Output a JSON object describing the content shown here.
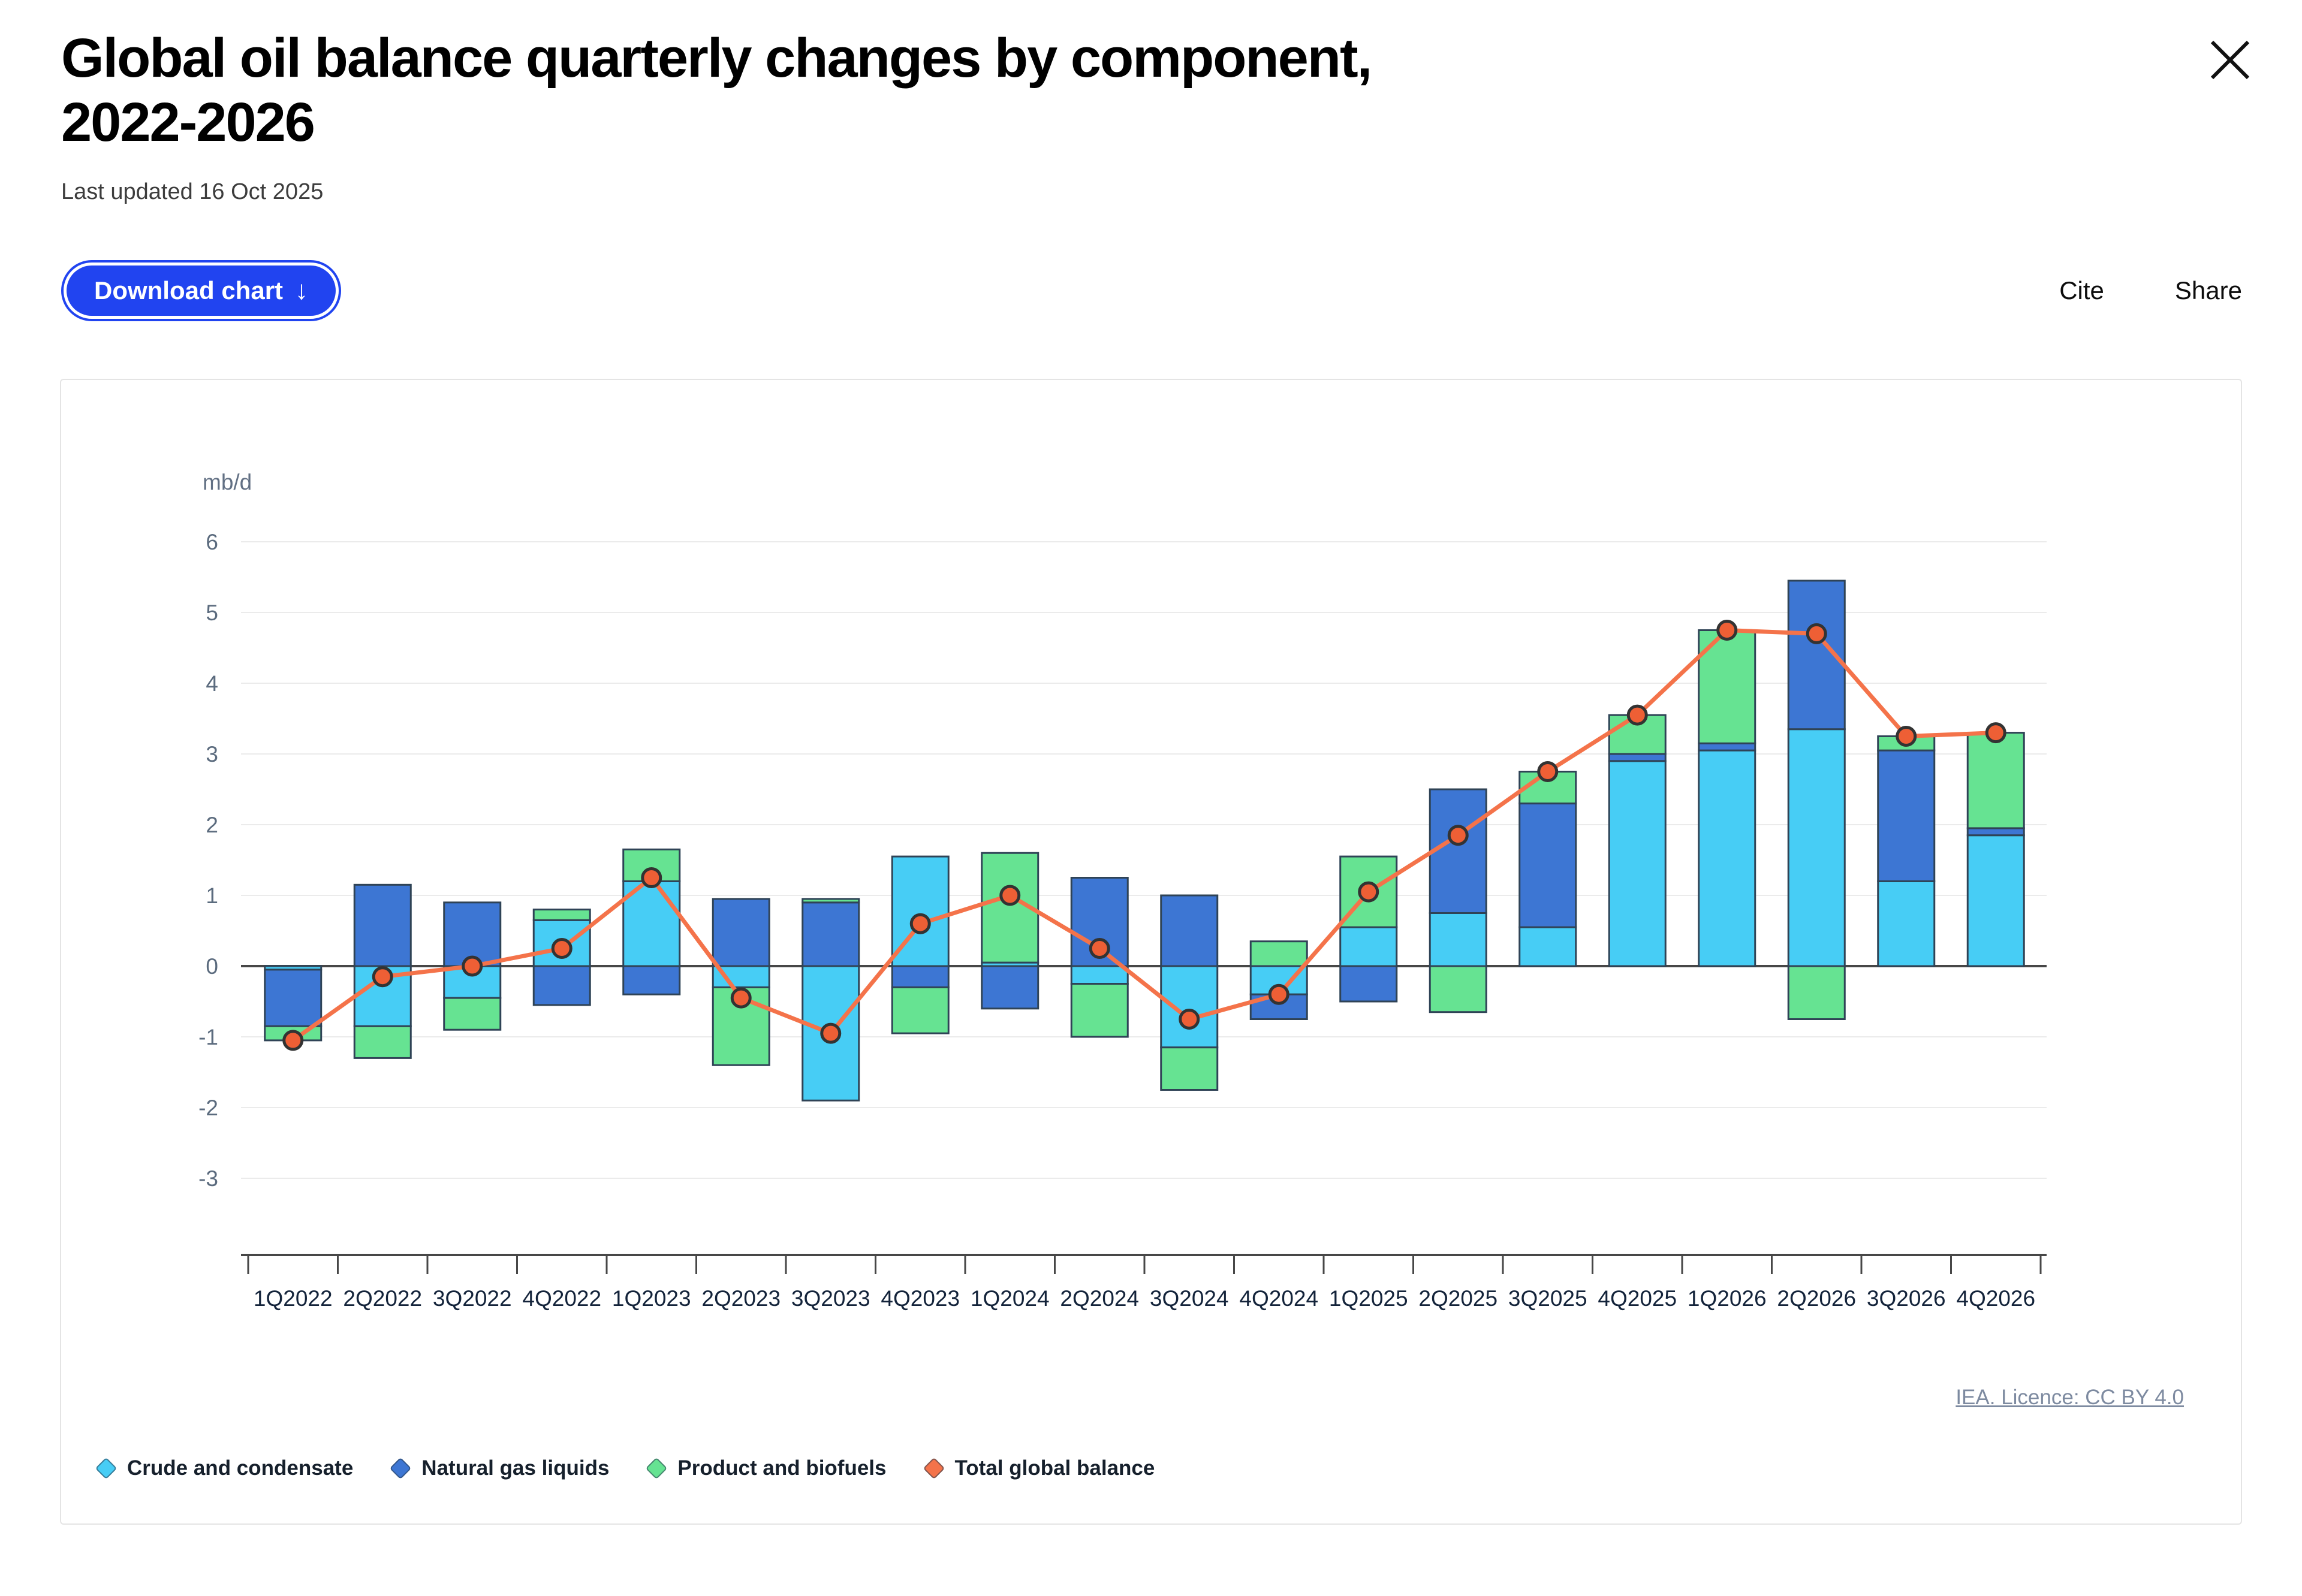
{
  "header": {
    "title": "Global oil balance quarterly changes by component, 2022-2026",
    "last_updated": "Last updated 16 Oct 2025",
    "download_label": "Download chart",
    "download_arrow": "↓",
    "cite_label": "Cite",
    "share_label": "Share"
  },
  "footer": {
    "licence": "IEA. Licence: CC BY 4.0"
  },
  "colors": {
    "accent_blue": "#2144f0",
    "crude": "#47cdf5",
    "ngl": "#3d76d3",
    "product": "#66e392",
    "total_line": "#f4734a",
    "total_dot": "#ee5f35",
    "bar_stroke": "#2f4356",
    "grid": "#ebebeb",
    "zero_line": "#474747",
    "axis_text": "#5b6b7e",
    "category_text": "#13233a"
  },
  "chart_data": {
    "type": "bar",
    "subtype": "stacked-bars-with-total-line",
    "ylabel": "mb/d",
    "ylim": [
      -3,
      6
    ],
    "ytick_step": 1,
    "grid": true,
    "legend_position": "bottom",
    "categories": [
      "1Q2022",
      "2Q2022",
      "3Q2022",
      "4Q2022",
      "1Q2023",
      "2Q2023",
      "3Q2023",
      "4Q2023",
      "1Q2024",
      "2Q2024",
      "3Q2024",
      "4Q2024",
      "1Q2025",
      "2Q2025",
      "3Q2025",
      "4Q2025",
      "1Q2026",
      "2Q2026",
      "3Q2026",
      "4Q2026"
    ],
    "series": [
      {
        "name": "Crude and condensate",
        "kind": "bar",
        "color": "#47cdf5",
        "values": [
          -0.05,
          -0.85,
          -0.45,
          0.65,
          1.2,
          -0.3,
          -1.9,
          1.55,
          0.05,
          -0.25,
          -1.15,
          -0.4,
          0.55,
          0.75,
          0.55,
          2.9,
          3.05,
          3.35,
          1.2,
          1.85
        ]
      },
      {
        "name": "Natural gas liquids",
        "kind": "bar",
        "color": "#3d76d3",
        "values": [
          -0.8,
          1.15,
          0.9,
          -0.55,
          -0.4,
          0.95,
          0.9,
          -0.3,
          -0.6,
          1.25,
          1.0,
          -0.35,
          -0.5,
          1.75,
          1.75,
          0.1,
          0.1,
          2.1,
          1.85,
          0.1
        ]
      },
      {
        "name": "Product and biofuels",
        "kind": "bar",
        "color": "#66e392",
        "values": [
          -0.2,
          -0.45,
          -0.45,
          0.15,
          0.45,
          -1.1,
          0.05,
          -0.65,
          1.55,
          -0.75,
          -0.6,
          0.35,
          1.0,
          -0.65,
          0.45,
          0.55,
          1.6,
          -0.75,
          0.2,
          1.35
        ]
      },
      {
        "name": "Total global balance",
        "kind": "line",
        "color": "#f4734a",
        "values": [
          -1.05,
          -0.15,
          0.0,
          0.25,
          1.25,
          -0.45,
          -0.95,
          0.6,
          1.0,
          0.25,
          -0.75,
          -0.4,
          1.05,
          1.85,
          2.75,
          3.55,
          4.75,
          4.7,
          3.25,
          3.3
        ]
      }
    ]
  }
}
